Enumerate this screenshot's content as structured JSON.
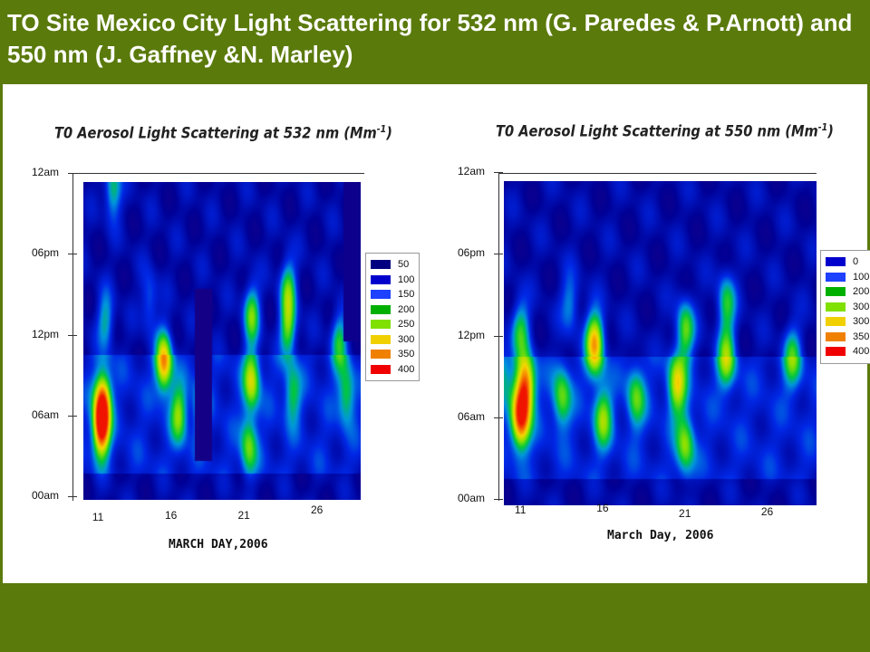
{
  "slide": {
    "title": "TO Site Mexico City Light Scattering for 532 nm (G. Paredes & P.Arnott)  and 550 nm (J. Gaffney &N. Marley)"
  },
  "chart_data": [
    {
      "type": "heatmap",
      "title_main": "T0 Aerosol Light Scattering at 532 nm (Mm",
      "title_exp": "-1",
      "title_end": ")",
      "xlabel": "MARCH DAY,2006",
      "x_ticks": [
        "11",
        "16",
        "21",
        "26"
      ],
      "y_ticks": [
        "12am",
        "06pm",
        "12pm",
        "06am",
        "00am"
      ],
      "y_tick_hours": [
        24,
        18,
        12,
        6,
        0
      ],
      "xlim": [
        10,
        29
      ],
      "ylim": [
        0,
        24
      ],
      "legend": {
        "labels": [
          "50",
          "100",
          "150",
          "200",
          "250",
          "300",
          "350",
          "400"
        ],
        "colors": [
          "#000080",
          "#0000cd",
          "#1e40ff",
          "#00b000",
          "#80e000",
          "#f0d000",
          "#f08000",
          "#f00000"
        ]
      },
      "hotspots": [
        {
          "day": 11.2,
          "hour": 5.5,
          "value": 380
        },
        {
          "day": 11.3,
          "hour": 7.5,
          "value": 310
        },
        {
          "day": 11.5,
          "hour": 13.5,
          "value": 180
        },
        {
          "day": 15.5,
          "hour": 10.5,
          "value": 320
        },
        {
          "day": 16.5,
          "hour": 6.5,
          "value": 220
        },
        {
          "day": 18.0,
          "hour": 7.0,
          "value": 170
        },
        {
          "day": 21.5,
          "hour": 9.0,
          "value": 250
        },
        {
          "day": 21.5,
          "hour": 14.0,
          "value": 230
        },
        {
          "day": 21.3,
          "hour": 4.0,
          "value": 210
        },
        {
          "day": 24.0,
          "hour": 13.0,
          "value": 230
        },
        {
          "day": 24.0,
          "hour": 16.0,
          "value": 210
        },
        {
          "day": 24.3,
          "hour": 8.0,
          "value": 180
        },
        {
          "day": 27.5,
          "hour": 12.0,
          "value": 200
        },
        {
          "day": 28.0,
          "hour": 8.0,
          "value": 190
        },
        {
          "day": 12.0,
          "hour": 23.5,
          "value": 200
        },
        {
          "day": 14.5,
          "hour": 15.0,
          "value": 150
        }
      ]
    },
    {
      "type": "heatmap",
      "title_main": "T0 Aerosol Light Scattering at 550 nm (Mm",
      "title_exp": "-1",
      "title_end": ")",
      "xlabel": "March Day, 2006",
      "x_ticks": [
        "11",
        "16",
        "21",
        "26"
      ],
      "y_ticks": [
        "12am",
        "06pm",
        "12pm",
        "06am",
        "00am"
      ],
      "y_tick_hours": [
        24,
        18,
        12,
        6,
        0
      ],
      "xlim": [
        10,
        29
      ],
      "ylim": [
        0,
        24
      ],
      "legend": {
        "labels": [
          "0",
          "100",
          "200",
          "300",
          "300",
          "350",
          "400"
        ],
        "colors": [
          "#0000cd",
          "#1e40ff",
          "#00b000",
          "#80e000",
          "#f0d000",
          "#f08000",
          "#f00000"
        ]
      },
      "hotspots": [
        {
          "day": 11.0,
          "hour": 6.5,
          "value": 370
        },
        {
          "day": 11.3,
          "hour": 9.0,
          "value": 320
        },
        {
          "day": 11.0,
          "hour": 13.0,
          "value": 200
        },
        {
          "day": 15.5,
          "hour": 12.0,
          "value": 330
        },
        {
          "day": 13.5,
          "hour": 8.0,
          "value": 210
        },
        {
          "day": 16.0,
          "hour": 6.5,
          "value": 220
        },
        {
          "day": 20.5,
          "hour": 9.0,
          "value": 260
        },
        {
          "day": 21.0,
          "hour": 4.5,
          "value": 220
        },
        {
          "day": 21.0,
          "hour": 13.0,
          "value": 230
        },
        {
          "day": 23.5,
          "hour": 11.0,
          "value": 240
        },
        {
          "day": 23.5,
          "hour": 15.0,
          "value": 200
        },
        {
          "day": 18.0,
          "hour": 8.0,
          "value": 200
        },
        {
          "day": 27.5,
          "hour": 11.0,
          "value": 210
        },
        {
          "day": 9.8,
          "hour": 10.0,
          "value": 160
        },
        {
          "day": 14.0,
          "hour": 15.0,
          "value": 160
        }
      ]
    }
  ]
}
